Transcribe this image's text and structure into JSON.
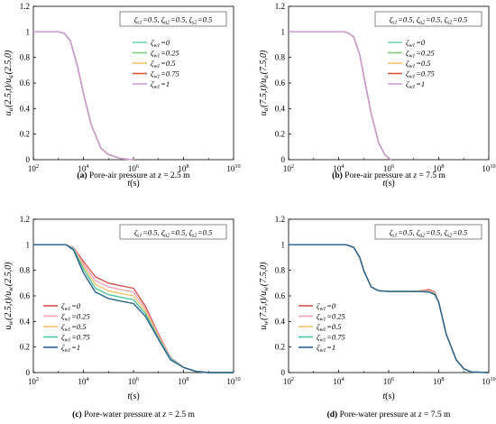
{
  "chart_data": [
    {
      "type": "line",
      "ylabel": "u_a(2.5,t)/u_a(2.5,0)",
      "xlabel": "t(s)",
      "xscale": "log",
      "xlim": [
        100,
        10000000000
      ],
      "ylim": [
        0,
        1.2
      ],
      "xticks": [
        "10^2",
        "10^4",
        "10^6",
        "10^8",
        "10^10"
      ],
      "yticks": [
        "0",
        "0.2",
        "0.4",
        "0.6",
        "0.8",
        "1",
        "1.2"
      ],
      "annotation": "ζ_s1=0.5, ζ_a2=0.5, ζ_s2=0.5",
      "legend_position": "right",
      "caption_label": "(a)",
      "caption_text": " Pore-air pressure at ",
      "caption_var": "z",
      "caption_tail": " = 2.5 m",
      "series": [
        {
          "name": "ζ_w1=0",
          "color": "#6fd3b6",
          "x": [
            100,
            1000,
            1700,
            3000,
            6000,
            10000,
            20000,
            50000,
            100000,
            300000,
            700000,
            1100000
          ],
          "y": [
            1,
            1,
            0.99,
            0.93,
            0.72,
            0.52,
            0.28,
            0.09,
            0.04,
            0.01,
            0.002,
            0
          ]
        },
        {
          "name": "ζ_w1=0.25",
          "color": "#7fc97f",
          "x": [
            100,
            1000,
            1700,
            3000,
            6000,
            10000,
            20000,
            50000,
            100000,
            300000,
            700000,
            1100000
          ],
          "y": [
            1,
            1,
            0.99,
            0.93,
            0.72,
            0.52,
            0.28,
            0.09,
            0.04,
            0.01,
            0.002,
            0
          ]
        },
        {
          "name": "ζ_w1=0.5",
          "color": "#f4c56a",
          "x": [
            100,
            1000,
            1700,
            3000,
            6000,
            10000,
            20000,
            50000,
            100000,
            300000,
            700000,
            1100000
          ],
          "y": [
            1,
            1,
            0.99,
            0.93,
            0.72,
            0.52,
            0.28,
            0.09,
            0.04,
            0.01,
            0.002,
            0
          ]
        },
        {
          "name": "ζ_w1=0.75",
          "color": "#e0533b",
          "x": [
            100,
            1000,
            1700,
            3000,
            6000,
            10000,
            20000,
            50000,
            100000,
            300000,
            700000,
            1100000
          ],
          "y": [
            1,
            1,
            0.99,
            0.93,
            0.72,
            0.52,
            0.28,
            0.09,
            0.04,
            0.01,
            0.002,
            0
          ]
        },
        {
          "name": "ζ_w1=1",
          "color": "#c9a0dc",
          "x": [
            100,
            1000,
            1700,
            3000,
            6000,
            10000,
            20000,
            50000,
            100000,
            300000,
            700000,
            1100000
          ],
          "y": [
            1,
            1,
            0.99,
            0.93,
            0.72,
            0.52,
            0.28,
            0.09,
            0.04,
            0.01,
            0.002,
            0
          ]
        }
      ]
    },
    {
      "type": "line",
      "ylabel": "u_a(7.5,t)/u_a(7.5,0)",
      "xlabel": "t(s)",
      "xscale": "log",
      "xlim": [
        100,
        10000000000
      ],
      "ylim": [
        0,
        1.2
      ],
      "xticks": [
        "10^2",
        "10^4",
        "10^6",
        "10^8",
        "10^10"
      ],
      "yticks": [
        "0",
        "0.2",
        "0.4",
        "0.6",
        "0.8",
        "1",
        "1.2"
      ],
      "annotation": "ζ_s1=0.5, ζ_a2=0.5, ζ_s2=0.5",
      "legend_position": "right",
      "caption_label": "(b)",
      "caption_text": " Pore-air pressure at ",
      "caption_var": "z",
      "caption_tail": " = 7.5 m",
      "series": [
        {
          "name": "ζ_w1=0",
          "color": "#6fd3b6",
          "x": [
            100,
            10000,
            17000,
            25000,
            40000,
            70000,
            100000,
            200000,
            400000,
            700000,
            1000000,
            1300000
          ],
          "y": [
            1,
            1,
            1,
            0.99,
            0.96,
            0.82,
            0.66,
            0.36,
            0.13,
            0.04,
            0.01,
            0
          ]
        },
        {
          "name": "ζ_w1=0.25",
          "color": "#7fc97f",
          "x": [
            100,
            10000,
            17000,
            25000,
            40000,
            70000,
            100000,
            200000,
            400000,
            700000,
            1000000,
            1300000
          ],
          "y": [
            1,
            1,
            1,
            0.99,
            0.96,
            0.82,
            0.66,
            0.36,
            0.13,
            0.04,
            0.01,
            0
          ]
        },
        {
          "name": "ζ_w1=0.5",
          "color": "#f4c56a",
          "x": [
            100,
            10000,
            17000,
            25000,
            40000,
            70000,
            100000,
            200000,
            400000,
            700000,
            1000000,
            1300000
          ],
          "y": [
            1,
            1,
            1,
            0.99,
            0.96,
            0.82,
            0.66,
            0.36,
            0.13,
            0.04,
            0.01,
            0
          ]
        },
        {
          "name": "ζ_w1=0.75",
          "color": "#e0533b",
          "x": [
            100,
            10000,
            17000,
            25000,
            40000,
            70000,
            100000,
            200000,
            400000,
            700000,
            1000000,
            1300000
          ],
          "y": [
            1,
            1,
            1,
            0.99,
            0.96,
            0.82,
            0.66,
            0.36,
            0.13,
            0.04,
            0.01,
            0
          ]
        },
        {
          "name": "ζ_w1=1",
          "color": "#c9a0dc",
          "x": [
            100,
            10000,
            17000,
            25000,
            40000,
            70000,
            100000,
            200000,
            400000,
            700000,
            1000000,
            1300000
          ],
          "y": [
            1,
            1,
            1,
            0.99,
            0.96,
            0.82,
            0.66,
            0.36,
            0.13,
            0.04,
            0.01,
            0
          ]
        }
      ]
    },
    {
      "type": "line",
      "ylabel": "u_w(2.5,t)/u_w(2.5,0)",
      "xlabel": "t(s)",
      "xscale": "log",
      "xlim": [
        100,
        10000000000
      ],
      "ylim": [
        0,
        1.2
      ],
      "xticks": [
        "10^2",
        "10^4",
        "10^6",
        "10^8",
        "10^10"
      ],
      "yticks": [
        "0",
        "0.2",
        "0.4",
        "0.6",
        "0.8",
        "1",
        "1.2"
      ],
      "annotation": "ζ_s1=0.5, ζ_a2=0.5, ζ_s2=0.5",
      "legend_position": "bottom-left",
      "caption_label": "(c)",
      "caption_text": " Pore-water pressure at ",
      "caption_var": "z",
      "caption_tail": " = 2.5 m",
      "series": [
        {
          "name": "ζ_w1=0",
          "color": "#d9534f",
          "x": [
            100,
            1000,
            2000,
            4000,
            10000,
            30000,
            100000,
            300000,
            1000000,
            3000000,
            10000000,
            30000000,
            100000000,
            300000000,
            1000000000,
            10000000000
          ],
          "y": [
            1,
            1,
            1,
            0.98,
            0.87,
            0.75,
            0.7,
            0.68,
            0.66,
            0.52,
            0.3,
            0.12,
            0.04,
            0.01,
            0,
            0
          ]
        },
        {
          "name": "ζ_w1=0.25",
          "color": "#f2a7b8",
          "x": [
            100,
            1000,
            2000,
            4000,
            10000,
            30000,
            100000,
            300000,
            1000000,
            3000000,
            10000000,
            30000000,
            100000000,
            300000000,
            1000000000,
            10000000000
          ],
          "y": [
            1,
            1,
            1,
            0.98,
            0.85,
            0.72,
            0.67,
            0.65,
            0.63,
            0.5,
            0.29,
            0.12,
            0.04,
            0.01,
            0,
            0
          ]
        },
        {
          "name": "ζ_w1=0.5",
          "color": "#f4c56a",
          "x": [
            100,
            1000,
            2000,
            4000,
            10000,
            30000,
            100000,
            300000,
            1000000,
            3000000,
            10000000,
            30000000,
            100000000,
            300000000,
            1000000000,
            10000000000
          ],
          "y": [
            1,
            1,
            1,
            0.97,
            0.83,
            0.69,
            0.64,
            0.62,
            0.6,
            0.48,
            0.28,
            0.11,
            0.04,
            0.01,
            0,
            0
          ]
        },
        {
          "name": "ζ_w1=0.75",
          "color": "#4fc3a1",
          "x": [
            100,
            1000,
            2000,
            4000,
            10000,
            30000,
            100000,
            300000,
            1000000,
            3000000,
            10000000,
            30000000,
            100000000,
            300000000,
            1000000000,
            10000000000
          ],
          "y": [
            1,
            1,
            1,
            0.97,
            0.81,
            0.66,
            0.61,
            0.59,
            0.57,
            0.46,
            0.27,
            0.11,
            0.04,
            0.01,
            0,
            0
          ]
        },
        {
          "name": "ζ_w1=1",
          "color": "#2c5f8f",
          "x": [
            100,
            1000,
            2000,
            4000,
            10000,
            30000,
            100000,
            300000,
            1000000,
            3000000,
            10000000,
            30000000,
            100000000,
            300000000,
            1000000000,
            10000000000
          ],
          "y": [
            1,
            1,
            1,
            0.96,
            0.78,
            0.63,
            0.58,
            0.56,
            0.54,
            0.44,
            0.26,
            0.1,
            0.04,
            0.01,
            0,
            0
          ]
        }
      ]
    },
    {
      "type": "line",
      "ylabel": "u_w(7.5,t)/u_w(7.5,0)",
      "xlabel": "t(s)",
      "xscale": "log",
      "xlim": [
        100,
        10000000000
      ],
      "ylim": [
        0,
        1.2
      ],
      "xticks": [
        "10^2",
        "10^4",
        "10^6",
        "10^8",
        "10^10"
      ],
      "yticks": [
        "0",
        "0.2",
        "0.4",
        "0.6",
        "0.8",
        "1",
        "1.2"
      ],
      "annotation": "ζ_s1=0.5, ζ_a2=0.5, ζ_s2=0.5",
      "legend_position": "bottom-left",
      "caption_label": "(d)",
      "caption_text": " Pore-water pressure at ",
      "caption_var": "z",
      "caption_tail": " = 7.5 m",
      "series": [
        {
          "name": "ζ_w1=0",
          "color": "#d9534f",
          "x": [
            100,
            10000,
            20000,
            40000,
            70000,
            100000,
            200000,
            400000,
            1000000,
            3000000,
            10000000,
            20000000,
            40000000,
            70000000,
            100000000,
            200000000,
            500000000,
            1000000000,
            2000000000,
            10000000000
          ],
          "y": [
            1,
            1,
            1,
            0.98,
            0.9,
            0.8,
            0.67,
            0.64,
            0.635,
            0.635,
            0.635,
            0.64,
            0.65,
            0.63,
            0.55,
            0.3,
            0.1,
            0.03,
            0.005,
            0
          ]
        },
        {
          "name": "ζ_w1=0.25",
          "color": "#f2a7b8",
          "x": [
            100,
            10000,
            20000,
            40000,
            70000,
            100000,
            200000,
            400000,
            1000000,
            3000000,
            10000000,
            20000000,
            40000000,
            70000000,
            100000000,
            200000000,
            500000000,
            1000000000,
            2000000000,
            10000000000
          ],
          "y": [
            1,
            1,
            1,
            0.98,
            0.9,
            0.8,
            0.67,
            0.64,
            0.635,
            0.635,
            0.635,
            0.638,
            0.642,
            0.625,
            0.55,
            0.3,
            0.1,
            0.03,
            0.005,
            0
          ]
        },
        {
          "name": "ζ_w1=0.5",
          "color": "#f4c56a",
          "x": [
            100,
            10000,
            20000,
            40000,
            70000,
            100000,
            200000,
            400000,
            1000000,
            3000000,
            10000000,
            20000000,
            40000000,
            70000000,
            100000000,
            200000000,
            500000000,
            1000000000,
            2000000000,
            10000000000
          ],
          "y": [
            1,
            1,
            1,
            0.98,
            0.9,
            0.8,
            0.67,
            0.64,
            0.635,
            0.635,
            0.635,
            0.636,
            0.636,
            0.62,
            0.55,
            0.3,
            0.1,
            0.03,
            0.005,
            0
          ]
        },
        {
          "name": "ζ_w1=0.75",
          "color": "#4fc3a1",
          "x": [
            100,
            10000,
            20000,
            40000,
            70000,
            100000,
            200000,
            400000,
            1000000,
            3000000,
            10000000,
            20000000,
            40000000,
            70000000,
            100000000,
            200000000,
            500000000,
            1000000000,
            2000000000,
            10000000000
          ],
          "y": [
            1,
            1,
            1,
            0.98,
            0.9,
            0.8,
            0.67,
            0.64,
            0.635,
            0.635,
            0.635,
            0.635,
            0.632,
            0.615,
            0.55,
            0.3,
            0.1,
            0.03,
            0.005,
            0
          ]
        },
        {
          "name": "ζ_w1=1",
          "color": "#2c5f8f",
          "x": [
            100,
            10000,
            20000,
            40000,
            70000,
            100000,
            200000,
            400000,
            1000000,
            3000000,
            10000000,
            20000000,
            40000000,
            70000000,
            100000000,
            200000000,
            500000000,
            1000000000,
            2000000000,
            10000000000
          ],
          "y": [
            1,
            1,
            1,
            0.98,
            0.9,
            0.8,
            0.67,
            0.64,
            0.635,
            0.635,
            0.635,
            0.634,
            0.63,
            0.61,
            0.55,
            0.3,
            0.1,
            0.03,
            0.005,
            0
          ]
        }
      ]
    }
  ]
}
